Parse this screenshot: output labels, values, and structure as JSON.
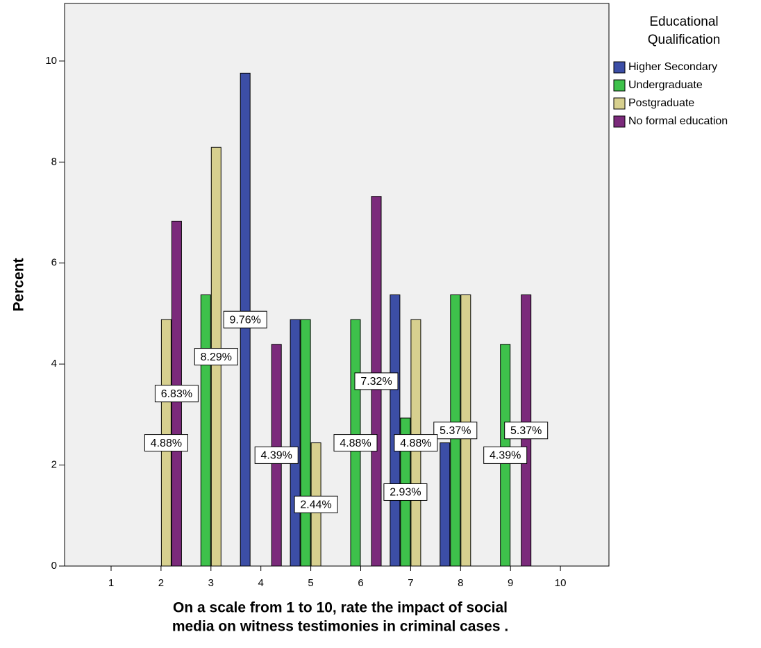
{
  "chart_data": {
    "type": "bar",
    "x_label": [
      "On a scale from 1 to 10, rate the impact of social",
      "media on witness testimonies in criminal cases ."
    ],
    "y_label": "Percent",
    "legend_title": [
      "Educational",
      "Qualification"
    ],
    "legend_position": "right",
    "categories": [
      "1",
      "2",
      "3",
      "4",
      "5",
      "6",
      "7",
      "8",
      "9",
      "10"
    ],
    "series": [
      {
        "name": "Higher Secondary",
        "color": "#3c4ea6",
        "values": [
          null,
          null,
          null,
          9.76,
          4.88,
          null,
          5.37,
          2.44,
          null,
          null
        ],
        "value_labels": [
          null,
          null,
          null,
          "9.76%",
          null,
          null,
          null,
          null,
          null,
          null
        ]
      },
      {
        "name": "Undergraduate",
        "color": "#3ec14b",
        "values": [
          null,
          null,
          5.37,
          null,
          4.88,
          4.88,
          2.93,
          5.37,
          4.39,
          null
        ],
        "value_labels": [
          null,
          null,
          null,
          null,
          null,
          "4.88%",
          "2.93%",
          "5.37%",
          "4.39%",
          null
        ]
      },
      {
        "name": "Postgraduate",
        "color": "#d7d08f",
        "values": [
          null,
          4.88,
          8.29,
          null,
          2.44,
          null,
          4.88,
          5.37,
          null,
          null
        ],
        "value_labels": [
          null,
          "4.88%",
          "8.29%",
          null,
          "2.44%",
          null,
          "4.88%",
          null,
          null,
          null
        ]
      },
      {
        "name": "No formal education",
        "color": "#7b2a7b",
        "values": [
          null,
          6.83,
          null,
          4.39,
          null,
          7.32,
          null,
          null,
          5.37,
          null
        ],
        "value_labels": [
          null,
          "6.83%",
          null,
          "4.39%",
          null,
          "7.32%",
          null,
          null,
          "5.37%",
          null
        ]
      }
    ],
    "ylim": [
      0,
      11.14
    ],
    "yticks": [
      0,
      2,
      4,
      6,
      8,
      10
    ],
    "grid": false
  }
}
